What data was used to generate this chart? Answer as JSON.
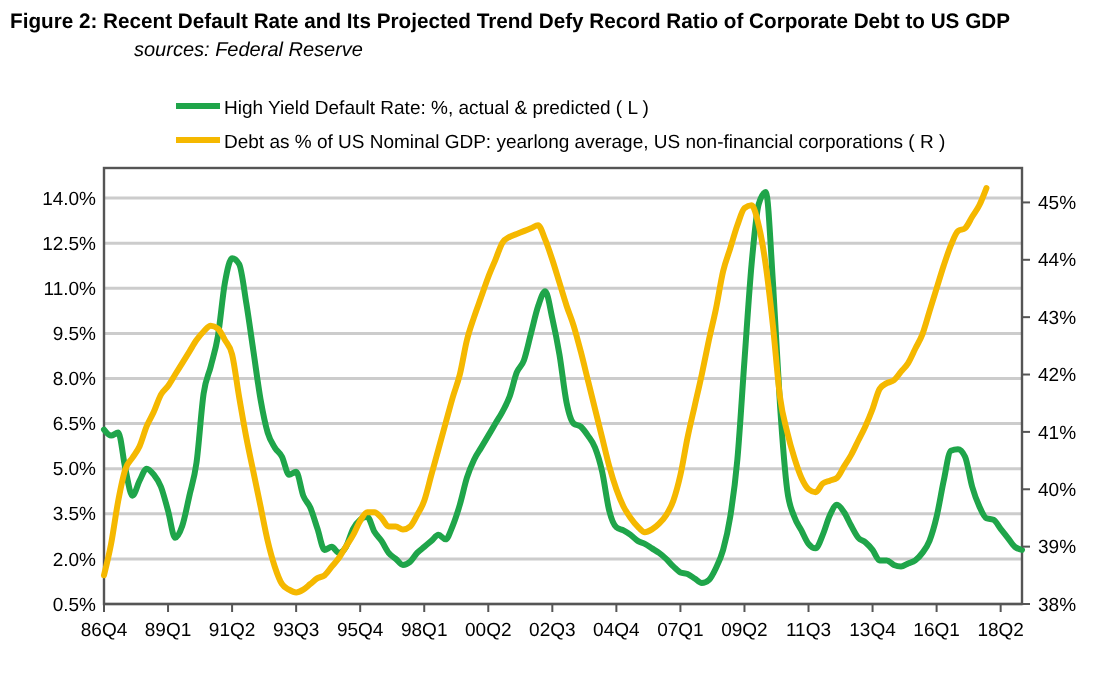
{
  "chart_data": {
    "type": "line",
    "title": "Figure 2: Recent Default Rate and Its Projected Trend Defy Record Ratio of Corporate Debt to US GDP",
    "subtitle": "sources: Federal Reserve",
    "legend": "top",
    "grid": "y",
    "line_style": "solid",
    "marker": "none",
    "categories": [
      "86Q4",
      null,
      null,
      null,
      null,
      null,
      null,
      null,
      null,
      "89Q1",
      null,
      null,
      null,
      null,
      null,
      null,
      null,
      null,
      "91Q2",
      null,
      null,
      null,
      null,
      null,
      null,
      null,
      null,
      "93Q3",
      null,
      null,
      null,
      null,
      null,
      null,
      null,
      null,
      "95Q4",
      null,
      null,
      null,
      null,
      null,
      null,
      null,
      null,
      "98Q1",
      null,
      null,
      null,
      null,
      null,
      null,
      null,
      null,
      "00Q2",
      null,
      null,
      null,
      null,
      null,
      null,
      null,
      null,
      "02Q3",
      null,
      null,
      null,
      null,
      null,
      null,
      null,
      null,
      "04Q4",
      null,
      null,
      null,
      null,
      null,
      null,
      null,
      null,
      "07Q1",
      null,
      null,
      null,
      null,
      null,
      null,
      null,
      null,
      "09Q2",
      null,
      null,
      null,
      null,
      null,
      null,
      null,
      null,
      "11Q3",
      null,
      null,
      null,
      null,
      null,
      null,
      null,
      null,
      "13Q4",
      null,
      null,
      null,
      null,
      null,
      null,
      null,
      null,
      "16Q1",
      null,
      null,
      null,
      null,
      null,
      null,
      null,
      null,
      "18Q2",
      null,
      null,
      null
    ],
    "ylim": [
      0.5,
      15.0
    ],
    "yticks": [
      {
        "value": 0.5,
        "label": "0.5%"
      },
      {
        "value": 2.0,
        "label": "2.0%"
      },
      {
        "value": 3.5,
        "label": "3.5%"
      },
      {
        "value": 5.0,
        "label": "5.0%"
      },
      {
        "value": 6.5,
        "label": "6.5%"
      },
      {
        "value": 8.0,
        "label": "8.0%"
      },
      {
        "value": 9.5,
        "label": "9.5%"
      },
      {
        "value": 11.0,
        "label": "11.0%"
      },
      {
        "value": 12.5,
        "label": "12.5%"
      },
      {
        "value": 14.0,
        "label": "14.0%"
      }
    ],
    "y2lim": [
      38,
      45.6
    ],
    "y2ticks": [
      {
        "value": 38,
        "label": "38%"
      },
      {
        "value": 39,
        "label": "39%"
      },
      {
        "value": 40,
        "label": "40%"
      },
      {
        "value": 41,
        "label": "41%"
      },
      {
        "value": 42,
        "label": "42%"
      },
      {
        "value": 43,
        "label": "43%"
      },
      {
        "value": 44,
        "label": "44%"
      },
      {
        "value": 45,
        "label": "45%"
      }
    ],
    "series": [
      {
        "name": "High Yield Default Rate: %, actual & predicted ( L )",
        "color": "#1fa54a",
        "values": [
          6.3,
          6.1,
          6.2,
          5.0,
          4.1,
          4.6,
          5.0,
          4.8,
          4.4,
          3.6,
          2.7,
          3.1,
          4.1,
          5.2,
          7.5,
          8.4,
          9.4,
          11.2,
          12.0,
          11.8,
          10.5,
          8.9,
          7.3,
          6.2,
          5.7,
          5.4,
          4.8,
          4.9,
          4.1,
          3.7,
          3.0,
          2.3,
          2.4,
          2.2,
          2.4,
          3.0,
          3.3,
          3.4,
          2.9,
          2.6,
          2.2,
          2.0,
          1.8,
          1.9,
          2.2,
          2.4,
          2.6,
          2.8,
          2.65,
          3.1,
          3.8,
          4.7,
          5.3,
          5.7,
          6.1,
          6.5,
          6.9,
          7.4,
          8.2,
          8.6,
          9.5,
          10.4,
          10.9,
          10.0,
          8.8,
          7.2,
          6.5,
          6.4,
          6.1,
          5.7,
          4.9,
          3.6,
          3.05,
          2.95,
          2.8,
          2.6,
          2.5,
          2.35,
          2.2,
          2.0,
          1.75,
          1.55,
          1.5,
          1.35,
          1.2,
          1.3,
          1.7,
          2.3,
          3.4,
          5.3,
          8.6,
          11.8,
          13.8,
          14.2,
          11.2,
          7.1,
          4.3,
          3.4,
          2.95,
          2.5,
          2.35,
          2.8,
          3.45,
          3.8,
          3.55,
          3.1,
          2.7,
          2.55,
          2.3,
          1.95,
          1.95,
          1.8,
          1.75,
          1.85,
          1.95,
          2.2,
          2.6,
          3.4,
          4.6,
          5.6,
          5.65,
          5.4,
          4.4,
          3.75,
          3.35,
          3.3,
          3.0,
          2.7,
          2.4,
          2.3
        ]
      },
      {
        "name": "Debt as % of US Nominal GDP: yearlong average, US non-financial corporations ( R )",
        "color": "#f5b800",
        "axis": "y2",
        "values": [
          38.5,
          39.05,
          39.8,
          40.35,
          40.55,
          40.75,
          41.1,
          41.35,
          41.65,
          41.8,
          42.0,
          42.2,
          42.4,
          42.6,
          42.75,
          42.85,
          42.8,
          42.6,
          42.35,
          41.6,
          40.9,
          40.3,
          39.7,
          39.1,
          38.65,
          38.35,
          38.25,
          38.2,
          38.25,
          38.35,
          38.45,
          38.5,
          38.65,
          38.8,
          39.0,
          39.2,
          39.45,
          39.6,
          39.6,
          39.5,
          39.35,
          39.35,
          39.3,
          39.35,
          39.55,
          39.8,
          40.25,
          40.7,
          41.15,
          41.6,
          42.0,
          42.6,
          43.0,
          43.35,
          43.7,
          44.0,
          44.3,
          44.4,
          44.45,
          44.5,
          44.55,
          44.6,
          44.35,
          44.0,
          43.6,
          43.2,
          42.85,
          42.4,
          41.9,
          41.4,
          40.9,
          40.4,
          40.0,
          39.7,
          39.5,
          39.35,
          39.25,
          39.3,
          39.4,
          39.55,
          39.8,
          40.25,
          40.9,
          41.45,
          42.0,
          42.6,
          43.15,
          43.8,
          44.2,
          44.6,
          44.9,
          44.95,
          44.6,
          43.9,
          42.85,
          41.6,
          41.0,
          40.55,
          40.2,
          40.0,
          39.95,
          40.1,
          40.15,
          40.2,
          40.4,
          40.6,
          40.85,
          41.1,
          41.4,
          41.75,
          41.85,
          41.9,
          42.05,
          42.2,
          42.45,
          42.7,
          43.1,
          43.5,
          43.9,
          44.25,
          44.5,
          44.55,
          44.75,
          44.95,
          45.25,
          null,
          null,
          null,
          null,
          null
        ]
      }
    ]
  }
}
